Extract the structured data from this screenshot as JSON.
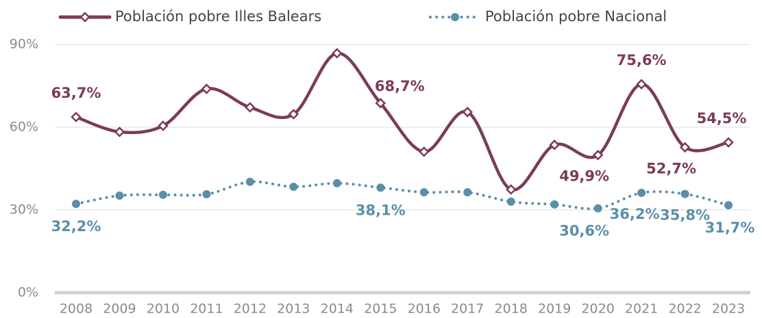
{
  "chart_data": {
    "type": "line",
    "categories": [
      "2008",
      "2009",
      "2010",
      "2011",
      "2012",
      "2013",
      "2014",
      "2015",
      "2016",
      "2017",
      "2018",
      "2019",
      "2020",
      "2021",
      "2022",
      "2023"
    ],
    "series": [
      {
        "name": "Población pobre Illes Balears",
        "color": "#7b3b5a",
        "values": [
          63.7,
          58.3,
          60.5,
          73.9,
          67.2,
          64.7,
          86.8,
          68.7,
          51.1,
          65.5,
          37.4,
          53.6,
          49.9,
          75.6,
          52.7,
          54.5
        ],
        "value_labels": [
          "63,7%",
          null,
          null,
          null,
          null,
          null,
          null,
          "68,7%",
          null,
          null,
          null,
          null,
          "49,9%",
          "75,6%",
          "52,7%",
          "54,5%"
        ]
      },
      {
        "name": "Población pobre Nacional",
        "color": "#5b8fa8",
        "values": [
          32.2,
          35.2,
          35.5,
          35.7,
          40.2,
          38.4,
          39.7,
          38.1,
          36.4,
          36.4,
          33.0,
          32.0,
          30.6,
          36.2,
          35.8,
          31.7
        ],
        "value_labels": [
          "32,2%",
          null,
          null,
          null,
          null,
          null,
          null,
          "38,1%",
          null,
          null,
          null,
          null,
          "30,6%",
          "36,2%",
          "35,8%",
          "31,7%"
        ]
      }
    ],
    "ylim": [
      0,
      90
    ],
    "yticks": [
      {
        "value": 0,
        "label": "0%"
      },
      {
        "value": 30,
        "label": "30%"
      },
      {
        "value": 60,
        "label": "60%"
      },
      {
        "value": 90,
        "label": "90%"
      }
    ],
    "grid": true,
    "legend": "top"
  }
}
